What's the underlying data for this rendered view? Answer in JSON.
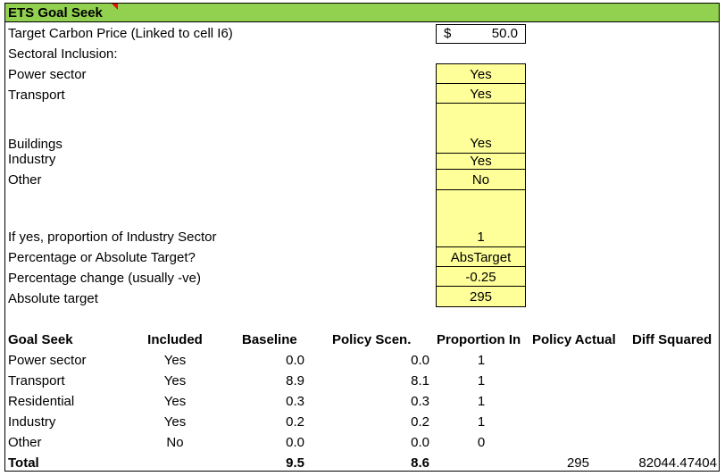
{
  "title": "ETS Goal Seek",
  "target": {
    "label": "Target Carbon Price (Linked to cell I6)",
    "currency": "$",
    "value": "50.0"
  },
  "sectoral_label": "Sectoral Inclusion:",
  "inclusion": [
    {
      "label": "Power sector",
      "value": "Yes"
    },
    {
      "label": "Transport",
      "value": "Yes"
    },
    {
      "label": "Buildings",
      "value": "Yes"
    },
    {
      "label": "Industry",
      "value": "Yes"
    },
    {
      "label": "Other",
      "value": "No"
    }
  ],
  "params": [
    {
      "label": "If yes, proportion of Industry Sector",
      "value": "1"
    },
    {
      "label": "Percentage or Absolute Target?",
      "value": "AbsTarget"
    },
    {
      "label": "Percentage change (usually -ve)",
      "value": "-0.25"
    },
    {
      "label": "Absolute target",
      "value": "295"
    }
  ],
  "goal_seek": {
    "headers": [
      "Goal Seek",
      "Included",
      "Baseline",
      "Policy Scen.",
      "Proportion In",
      "Policy Actual",
      "Diff Squared"
    ],
    "rows": [
      {
        "sector": "Power sector",
        "included": "Yes",
        "baseline": "0.0",
        "policy": "0.0",
        "proportion": "1"
      },
      {
        "sector": "Transport",
        "included": "Yes",
        "baseline": "8.9",
        "policy": "8.1",
        "proportion": "1"
      },
      {
        "sector": "Residential",
        "included": "Yes",
        "baseline": "0.3",
        "policy": "0.3",
        "proportion": "1"
      },
      {
        "sector": "Industry",
        "included": "Yes",
        "baseline": "0.2",
        "policy": "0.2",
        "proportion": "1"
      },
      {
        "sector": "Other",
        "included": "No",
        "baseline": "0.0",
        "policy": "0.0",
        "proportion": "0"
      }
    ],
    "total": {
      "label": "Total",
      "baseline": "9.5",
      "policy": "8.6",
      "policy_actual": "295",
      "diff_squared": "82044.47404"
    }
  },
  "colors": {
    "title_bg": "#92d050",
    "input_bg": "#ffff99",
    "comment_marker": "#e01010"
  }
}
